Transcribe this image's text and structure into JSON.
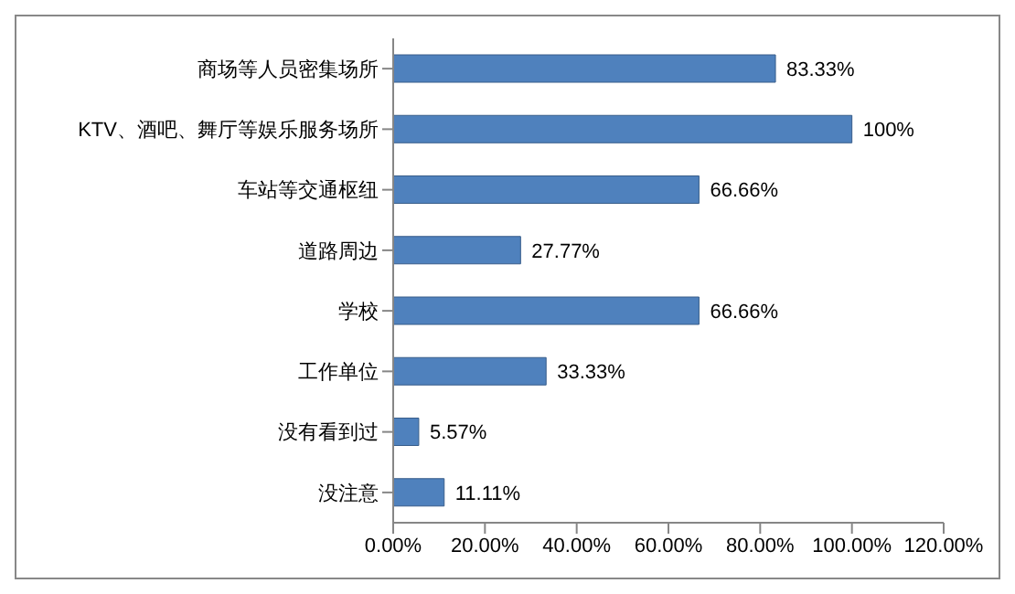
{
  "chart_data": {
    "type": "bar",
    "orientation": "horizontal",
    "categories": [
      "商场等人员密集场所",
      "KTV、酒吧、舞厅等娱乐服务场所",
      "车站等交通枢纽",
      "道路周边",
      "学校",
      "工作单位",
      "没有看到过",
      "没注意"
    ],
    "values": [
      83.33,
      100,
      66.66,
      27.77,
      66.66,
      33.33,
      5.57,
      11.11
    ],
    "value_labels": [
      "83.33%",
      "100%",
      "66.66%",
      "27.77%",
      "66.66%",
      "33.33%",
      "5.57%",
      "11.11%"
    ],
    "color": "#4f81bd",
    "xlim": [
      0,
      120
    ],
    "xticks": [
      {
        "value": 0,
        "label": "0.00%"
      },
      {
        "value": 20,
        "label": "20.00%"
      },
      {
        "value": 40,
        "label": "40.00%"
      },
      {
        "value": 60,
        "label": "60.00%"
      },
      {
        "value": 80,
        "label": "80.00%"
      },
      {
        "value": 100,
        "label": "100.00%"
      },
      {
        "value": 120,
        "label": "120.00%"
      }
    ]
  }
}
